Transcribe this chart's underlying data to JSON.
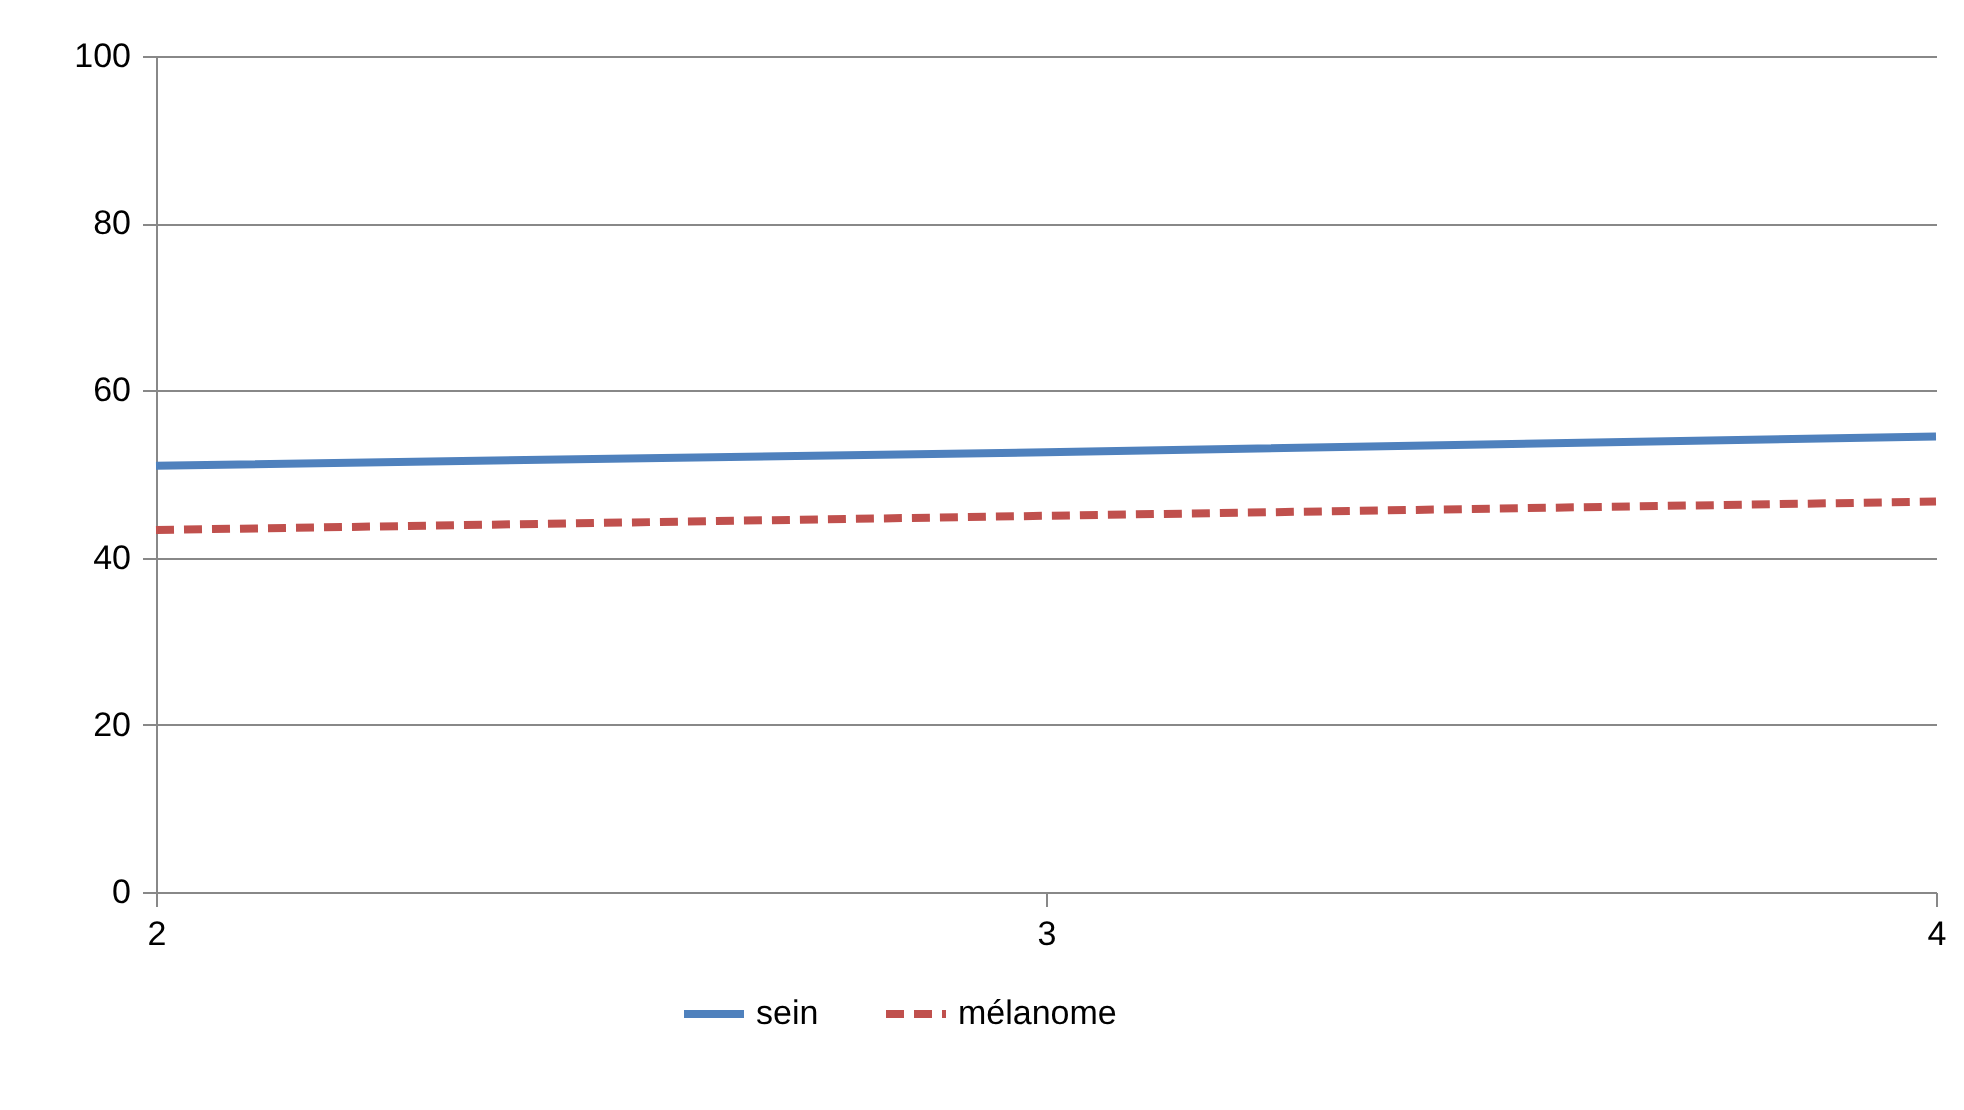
{
  "chart_data": {
    "type": "line",
    "x": [
      2,
      3,
      4
    ],
    "xlim": [
      2,
      4
    ],
    "xticks": [
      2,
      3,
      4
    ],
    "ylim": [
      0,
      100
    ],
    "yticks": [
      0,
      20,
      40,
      60,
      80,
      100
    ],
    "grid": "y",
    "legend": "bottom",
    "marker": "none",
    "series": [
      {
        "name": "sein",
        "color": "#4f81bd",
        "line_style": "solid",
        "values": [
          51.0,
          52.6,
          54.5
        ]
      },
      {
        "name": "mélanome",
        "color": "#c0504d",
        "line_style": "dashed",
        "values": [
          43.3,
          45.0,
          46.7
        ]
      }
    ]
  }
}
